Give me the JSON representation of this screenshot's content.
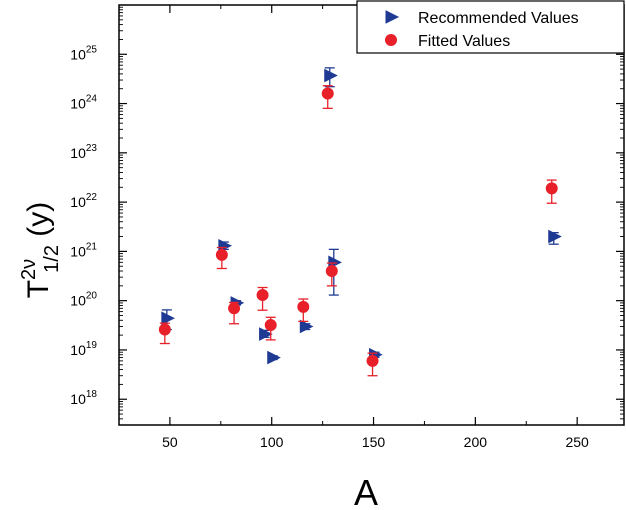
{
  "chart_data": {
    "type": "scatter",
    "xlabel": "A",
    "ylabel": {
      "base": "T",
      "superscript": "2ν",
      "subscript": "1/2",
      "unit": " (y)"
    },
    "xlim": [
      25,
      273
    ],
    "ylog": true,
    "ylim": [
      3e+17,
      1e+26
    ],
    "x_ticks": [
      50,
      100,
      150,
      200,
      250
    ],
    "x_tick_labels": [
      "50",
      "100",
      "150",
      "200",
      "250"
    ],
    "y_ticks": [
      1e+18,
      1e+19,
      1e+20,
      1e+21,
      1e+22,
      1e+23,
      1e+24,
      1e+25
    ],
    "y_tick_labels": [
      {
        "base": "10",
        "exp": "18"
      },
      {
        "base": "10",
        "exp": "19"
      },
      {
        "base": "10",
        "exp": "20"
      },
      {
        "base": "10",
        "exp": "21"
      },
      {
        "base": "10",
        "exp": "22"
      },
      {
        "base": "10",
        "exp": "23"
      },
      {
        "base": "10",
        "exp": "24"
      },
      {
        "base": "10",
        "exp": "25"
      }
    ],
    "grid": false,
    "legend_position": "top-right",
    "series": [
      {
        "name": "Recommended Values",
        "marker": "triangle-right",
        "color": "#1f3a93",
        "points": [
          {
            "x": 48,
            "y": 4.4e+19,
            "ylo": 2.6e+19,
            "yhi": 6.5e+19
          },
          {
            "x": 76,
            "y": 1.3e+21,
            "ylo": 1.1e+21,
            "yhi": 1.55e+21
          },
          {
            "x": 82,
            "y": 9e+19,
            "ylo": 8.2e+19,
            "yhi": 1e+20
          },
          {
            "x": 96,
            "y": 2.1e+19,
            "ylo": 1.8e+19,
            "yhi": 2.5e+19
          },
          {
            "x": 100,
            "y": 7e+18,
            "ylo": 6.4e+18,
            "yhi": 7.6e+18
          },
          {
            "x": 116,
            "y": 3e+19,
            "ylo": 2.6e+19,
            "yhi": 3.4e+19
          },
          {
            "x": 128,
            "y": 3.7e+24,
            "ylo": 2.2e+24,
            "yhi": 5.3e+24
          },
          {
            "x": 130,
            "y": 6e+20,
            "ylo": 1.3e+20,
            "yhi": 1.1e+21
          },
          {
            "x": 150,
            "y": 8e+18,
            "ylo": 7.1e+18,
            "yhi": 9e+18
          },
          {
            "x": 238,
            "y": 2e+21,
            "ylo": 1.4e+21,
            "yhi": 2.4e+21
          }
        ]
      },
      {
        "name": "Fitted Values",
        "marker": "circle",
        "color": "#e8202a",
        "points": [
          {
            "x": 48,
            "y": 2.6e+19,
            "ylo": 1.35e+19,
            "yhi": 3.5e+19
          },
          {
            "x": 76,
            "y": 8.5e+20,
            "ylo": 4.5e+20,
            "yhi": 1.2e+21
          },
          {
            "x": 82,
            "y": 7e+19,
            "ylo": 3.4e+19,
            "yhi": 9.2e+19
          },
          {
            "x": 96,
            "y": 1.3e+20,
            "ylo": 6.4e+19,
            "yhi": 1.85e+20
          },
          {
            "x": 100,
            "y": 3.2e+19,
            "ylo": 1.6e+19,
            "yhi": 4.6e+19
          },
          {
            "x": 116,
            "y": 7.5e+19,
            "ylo": 3.8e+19,
            "yhi": 1.08e+20
          },
          {
            "x": 128,
            "y": 1.6e+24,
            "ylo": 8e+23,
            "yhi": 2.3e+24
          },
          {
            "x": 130,
            "y": 4e+20,
            "ylo": 2e+20,
            "yhi": 5.8e+20
          },
          {
            "x": 150,
            "y": 6e+18,
            "ylo": 3e+18,
            "yhi": 8.6e+18
          },
          {
            "x": 238,
            "y": 1.9e+22,
            "ylo": 9.5e+21,
            "yhi": 2.8e+22
          }
        ]
      }
    ]
  }
}
